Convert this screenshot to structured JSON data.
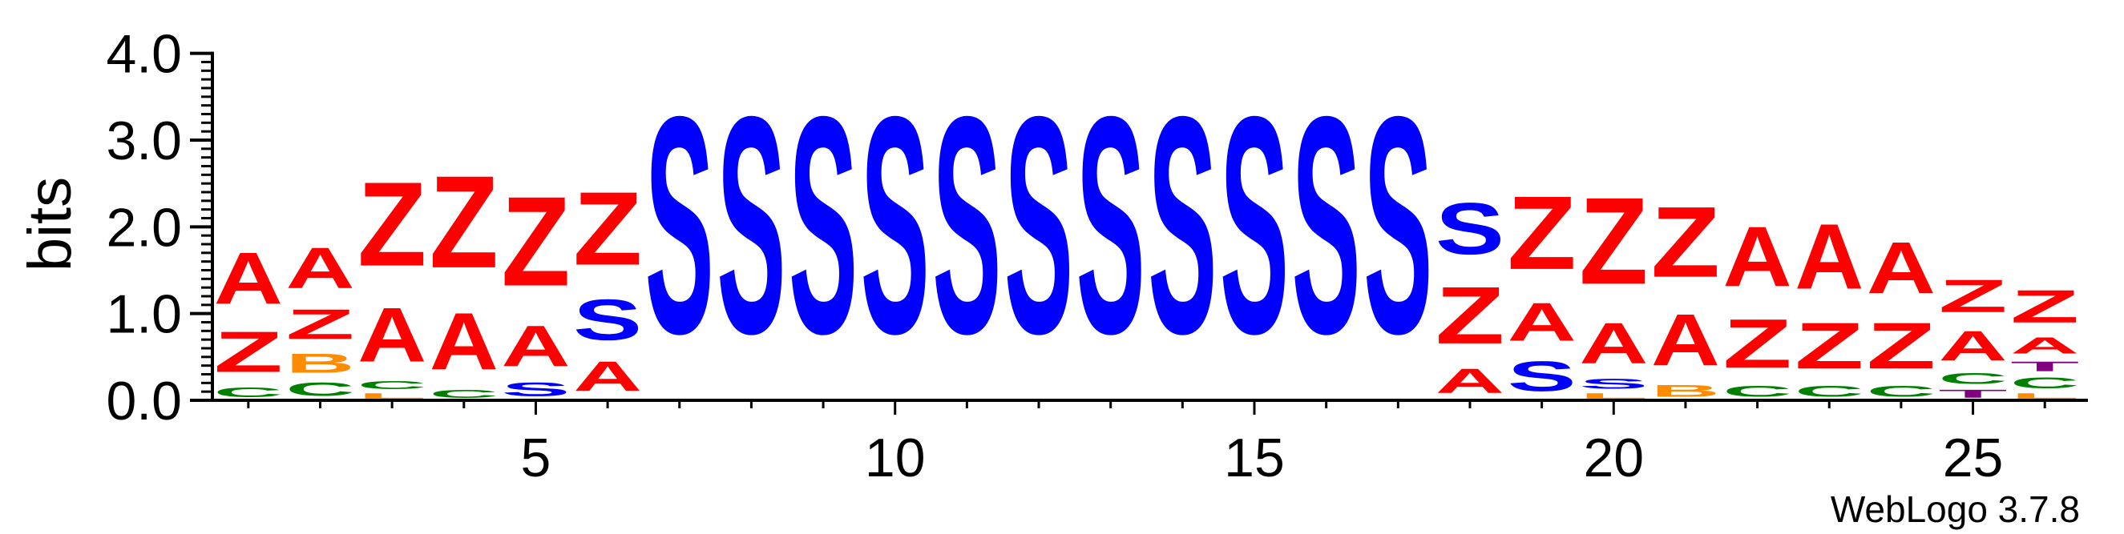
{
  "chart_data": {
    "type": "sequence-logo",
    "ylabel": "bits",
    "ylim": [
      0,
      4.2
    ],
    "y_ticks": [
      "0.0",
      "1.0",
      "2.0",
      "3.0",
      "4.0"
    ],
    "x_range": [
      0.5,
      26.6
    ],
    "x_ticks": [
      "5",
      "10",
      "15",
      "20",
      "25"
    ],
    "credit": "WebLogo 3.7.8",
    "colors": {
      "A": "#ff0000",
      "Z": "#ff0000",
      "S": "#0000ff",
      "B": "#ff8c00",
      "C": "#008000",
      "T": "#800080",
      "L": "#ff8c00"
    },
    "positions": [
      {
        "x": 1,
        "letters": [
          {
            "l": "C",
            "h": 0.18
          },
          {
            "l": "Z",
            "h": 0.75
          },
          {
            "l": "A",
            "h": 0.95
          }
        ]
      },
      {
        "x": 2,
        "letters": [
          {
            "l": "C",
            "h": 0.25
          },
          {
            "l": "B",
            "h": 0.35
          },
          {
            "l": "Z",
            "h": 0.55
          },
          {
            "l": "A",
            "h": 0.75
          }
        ]
      },
      {
        "x": 3,
        "letters": [
          {
            "l": "L",
            "h": 0.1
          },
          {
            "l": "C",
            "h": 0.15
          },
          {
            "l": "A",
            "h": 1.0
          },
          {
            "l": "Z",
            "h": 1.55
          }
        ]
      },
      {
        "x": 4,
        "letters": [
          {
            "l": "C",
            "h": 0.15
          },
          {
            "l": "A",
            "h": 1.05
          },
          {
            "l": "Z",
            "h": 1.7
          }
        ]
      },
      {
        "x": 5,
        "letters": [
          {
            "l": "S",
            "h": 0.25
          },
          {
            "l": "A",
            "h": 0.75
          },
          {
            "l": "Z",
            "h": 1.65
          }
        ]
      },
      {
        "x": 6,
        "letters": [
          {
            "l": "A",
            "h": 0.55
          },
          {
            "l": "S",
            "h": 0.75
          },
          {
            "l": "Z",
            "h": 1.35
          }
        ]
      },
      {
        "x": 7,
        "letters": [
          {
            "l": "S",
            "h": 4.0
          }
        ]
      },
      {
        "x": 8,
        "letters": [
          {
            "l": "S",
            "h": 4.0
          }
        ]
      },
      {
        "x": 9,
        "letters": [
          {
            "l": "S",
            "h": 4.0
          }
        ]
      },
      {
        "x": 10,
        "letters": [
          {
            "l": "S",
            "h": 4.0
          }
        ]
      },
      {
        "x": 11,
        "letters": [
          {
            "l": "S",
            "h": 4.0
          }
        ]
      },
      {
        "x": 12,
        "letters": [
          {
            "l": "S",
            "h": 4.0
          }
        ]
      },
      {
        "x": 13,
        "letters": [
          {
            "l": "S",
            "h": 4.0
          }
        ]
      },
      {
        "x": 14,
        "letters": [
          {
            "l": "S",
            "h": 4.0
          }
        ]
      },
      {
        "x": 15,
        "letters": [
          {
            "l": "S",
            "h": 4.0
          }
        ]
      },
      {
        "x": 16,
        "letters": [
          {
            "l": "S",
            "h": 4.0
          }
        ]
      },
      {
        "x": 17,
        "letters": [
          {
            "l": "S",
            "h": 4.0
          }
        ]
      },
      {
        "x": 18,
        "letters": [
          {
            "l": "A",
            "h": 0.45
          },
          {
            "l": "Z",
            "h": 1.05
          },
          {
            "l": "S",
            "h": 0.95
          }
        ]
      },
      {
        "x": 19,
        "letters": [
          {
            "l": "S",
            "h": 0.55
          },
          {
            "l": "A",
            "h": 0.7
          },
          {
            "l": "Z",
            "h": 1.35
          }
        ]
      },
      {
        "x": 20,
        "letters": [
          {
            "l": "L",
            "h": 0.1
          },
          {
            "l": "S",
            "h": 0.18
          },
          {
            "l": "A",
            "h": 0.75
          },
          {
            "l": "Z",
            "h": 1.6
          }
        ]
      },
      {
        "x": 21,
        "letters": [
          {
            "l": "B",
            "h": 0.22
          },
          {
            "l": "A",
            "h": 0.95
          },
          {
            "l": "Z",
            "h": 1.3
          }
        ]
      },
      {
        "x": 22,
        "letters": [
          {
            "l": "C",
            "h": 0.2
          },
          {
            "l": "Z",
            "h": 0.9
          },
          {
            "l": "A",
            "h": 1.1
          }
        ]
      },
      {
        "x": 23,
        "letters": [
          {
            "l": "C",
            "h": 0.2
          },
          {
            "l": "Z",
            "h": 0.85
          },
          {
            "l": "A",
            "h": 1.2
          }
        ]
      },
      {
        "x": 24,
        "letters": [
          {
            "l": "C",
            "h": 0.2
          },
          {
            "l": "Z",
            "h": 0.85
          },
          {
            "l": "A",
            "h": 0.95
          }
        ]
      },
      {
        "x": 25,
        "letters": [
          {
            "l": "T",
            "h": 0.15
          },
          {
            "l": "C",
            "h": 0.2
          },
          {
            "l": "A",
            "h": 0.55
          },
          {
            "l": "Z",
            "h": 0.6
          }
        ]
      },
      {
        "x": 26,
        "letters": [
          {
            "l": "L",
            "h": 0.1
          },
          {
            "l": "C",
            "h": 0.2
          },
          {
            "l": "T",
            "h": 0.18
          },
          {
            "l": "A",
            "h": 0.3
          },
          {
            "l": "Z",
            "h": 0.6
          }
        ]
      }
    ]
  }
}
